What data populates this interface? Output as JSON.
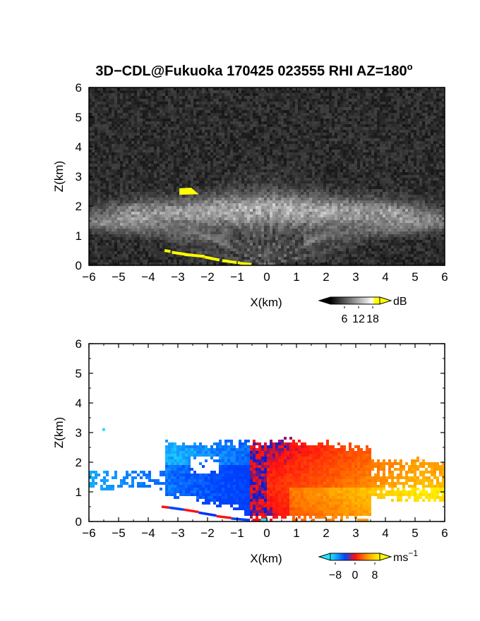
{
  "chart_data": [
    {
      "type": "heatmap",
      "title": "3D−CDL@Fukuoka 170425 023555 RHI AZ=180",
      "title_superscript": "o",
      "quantity": "backscatter intensity",
      "xlabel": "X(km)",
      "ylabel": "Z(km)",
      "xlim": [
        -6,
        6
      ],
      "ylim": [
        0,
        6
      ],
      "xticks": [
        "−6",
        "−5",
        "−4",
        "−3",
        "−2",
        "−1",
        "0",
        "1",
        "2",
        "3",
        "4",
        "5",
        "6"
      ],
      "yticks": [
        "0",
        "1",
        "2",
        "3",
        "4",
        "5",
        "6"
      ],
      "colorbar": {
        "unit": "dB",
        "ticks": [
          "6",
          "12",
          "18"
        ],
        "range": [
          0,
          21
        ]
      },
      "features": [
        {
          "type": "scatter-layer",
          "x_range": [
            -6,
            6
          ],
          "z_range": [
            0.9,
            2.7
          ],
          "peak_z": 1.9,
          "level_db": 12
        },
        {
          "type": "rays-from-origin",
          "x_range": [
            -3.2,
            3.5
          ],
          "level_db": 14
        },
        {
          "type": "saturated-echo",
          "x_range": [
            -2.9,
            -2.3
          ],
          "z_range": [
            2.3,
            2.6
          ],
          "level_db": 21
        },
        {
          "type": "saturated-ground-clutter",
          "x_range": [
            -3.5,
            -0.5
          ],
          "z_range": [
            0,
            0.5
          ],
          "level_db": 21
        }
      ],
      "colors": {
        "background": "#1c1c1c",
        "saturated": "#ffff00",
        "max": "#ffffff"
      }
    },
    {
      "type": "heatmap",
      "quantity": "radial velocity",
      "xlabel": "X(km)",
      "ylabel": "Z(km)",
      "xlim": [
        -6,
        6
      ],
      "ylim": [
        0,
        6
      ],
      "xticks": [
        "−6",
        "−5",
        "−4",
        "−3",
        "−2",
        "−1",
        "0",
        "1",
        "2",
        "3",
        "4",
        "5",
        "6"
      ],
      "yticks": [
        "0",
        "1",
        "2",
        "3",
        "4",
        "5",
        "6"
      ],
      "colorbar": {
        "unit": "ms",
        "unit_exponent": "−1",
        "ticks": [
          "−8",
          "0",
          "8"
        ],
        "range": [
          -10,
          10
        ]
      },
      "features": [
        {
          "type": "negative-velocity-region",
          "x_range": [
            -3.4,
            0
          ],
          "z_range": [
            0,
            2.9
          ],
          "velocity_ms": -6
        },
        {
          "type": "negative-velocity-tail",
          "x_range": [
            -6,
            -3.4
          ],
          "z_range": [
            1.0,
            1.7
          ],
          "velocity_ms": -9
        },
        {
          "type": "positive-velocity-region",
          "x_range": [
            0,
            6
          ],
          "z_range": [
            0,
            2.9
          ],
          "velocity_ms": 5
        },
        {
          "type": "positive-velocity-tail",
          "x_range": [
            3.5,
            6
          ],
          "z_range": [
            0.8,
            2.0
          ],
          "velocity_ms": 8
        },
        {
          "type": "folded-ground-clutter",
          "x_range": [
            -3.5,
            -0.5
          ],
          "z_range": [
            0,
            0.5
          ]
        }
      ],
      "colors": {
        "background": "#ffffff",
        "negative": "#0044ff",
        "zero": "#ff2200",
        "positive": "#ffff00"
      }
    }
  ]
}
